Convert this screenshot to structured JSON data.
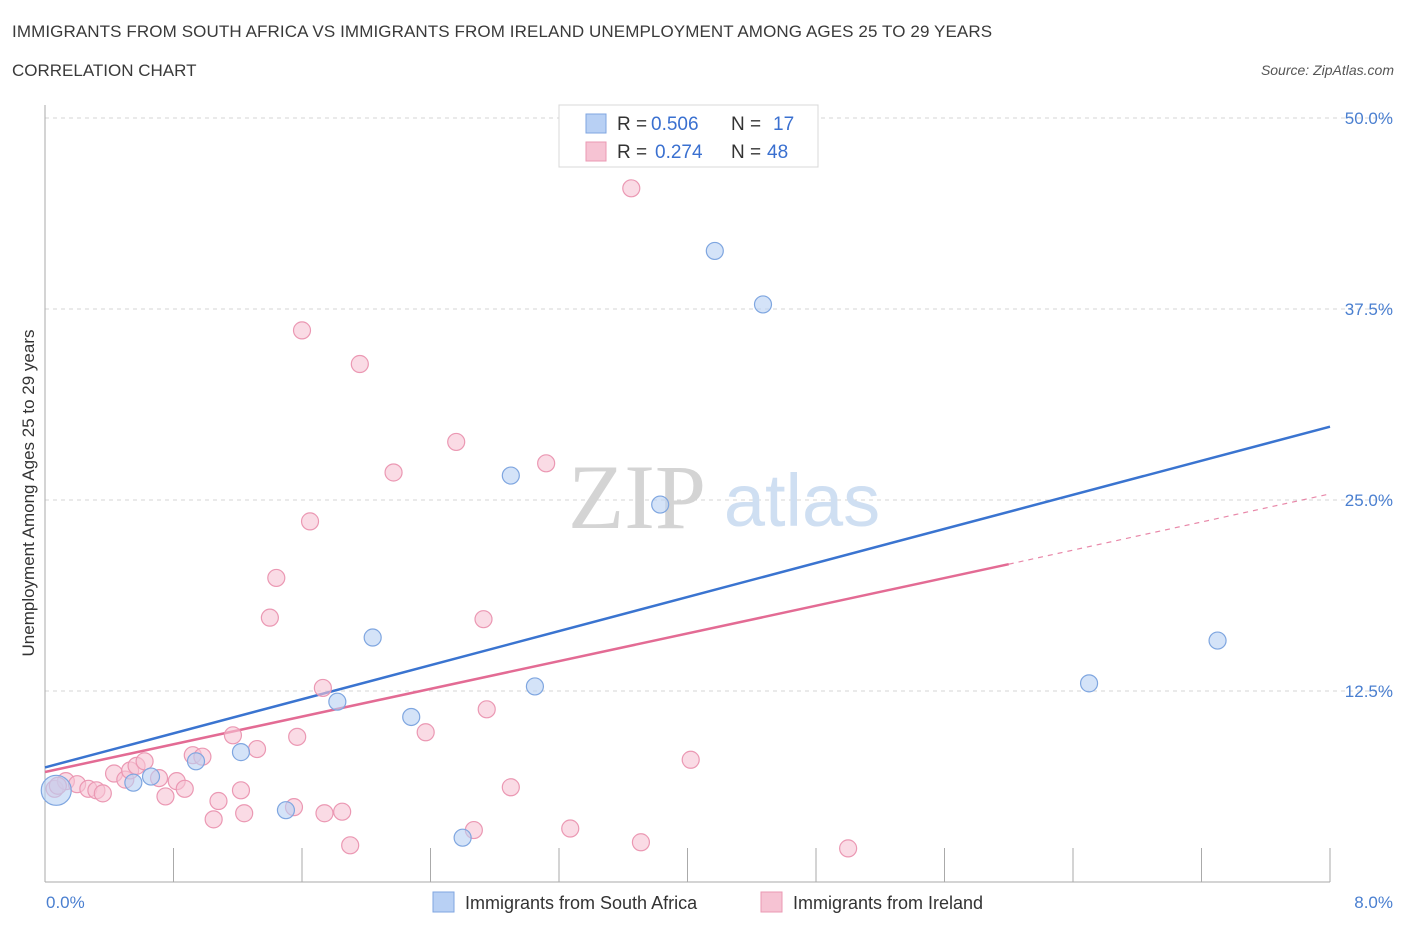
{
  "title": "IMMIGRANTS FROM SOUTH AFRICA VS IMMIGRANTS FROM IRELAND UNEMPLOYMENT AMONG AGES 25 TO 29 YEARS",
  "subtitle": "CORRELATION CHART",
  "source": "Source: ZipAtlas.com",
  "watermark": {
    "zip": "ZIP",
    "atlas": "atlas"
  },
  "legend": {
    "r_label": "R =",
    "n_label": "N =",
    "rows": [
      {
        "r": "0.506",
        "n": "17"
      },
      {
        "r": "0.274",
        "n": "48"
      }
    ]
  },
  "colors": {
    "south_africa_fill": "#b8d0f4",
    "south_africa_stroke": "#7fa6e0",
    "south_africa_line": "#3a74d0",
    "ireland_fill": "#f6c3d3",
    "ireland_stroke": "#eb98b3",
    "ireland_line": "#e36b94",
    "grid": "#d6d6d6",
    "tick_label": "#4a7fd0"
  },
  "chart_data": {
    "type": "scatter",
    "xlabel": "",
    "ylabel": "Unemployment Among Ages 25 to 29 years",
    "xlim": [
      0,
      8
    ],
    "ylim": [
      0,
      50
    ],
    "x_tick_labels": [
      {
        "value": 0,
        "label": "0.0%"
      },
      {
        "value": 8,
        "label": "8.0%"
      }
    ],
    "y_tick_labels": [
      {
        "value": 12.5,
        "label": "12.5%"
      },
      {
        "value": 25,
        "label": "25.0%"
      },
      {
        "value": 37.5,
        "label": "37.5%"
      },
      {
        "value": 50,
        "label": "50.0%"
      }
    ],
    "grid": true,
    "legend_position": "top-center",
    "series": [
      {
        "name": "Immigrants from South Africa",
        "r": 0.506,
        "n": 17,
        "trend": {
          "x0": 0,
          "y0": 7.5,
          "x1": 8,
          "y1": 29.8
        },
        "points": [
          [
            0.07,
            6.0
          ],
          [
            0.55,
            6.5
          ],
          [
            0.66,
            6.9
          ],
          [
            0.94,
            7.9
          ],
          [
            1.22,
            8.5
          ],
          [
            1.5,
            4.7
          ],
          [
            1.82,
            11.8
          ],
          [
            2.04,
            16.0
          ],
          [
            2.28,
            10.8
          ],
          [
            2.6,
            2.9
          ],
          [
            2.9,
            26.6
          ],
          [
            3.05,
            12.8
          ],
          [
            3.83,
            24.7
          ],
          [
            4.17,
            41.3
          ],
          [
            4.47,
            37.8
          ],
          [
            6.5,
            13.0
          ],
          [
            7.3,
            15.8
          ]
        ]
      },
      {
        "name": "Immigrants from Ireland",
        "r": 0.274,
        "n": 48,
        "trend": {
          "x0": 0,
          "y0": 7.2,
          "x1": 6.0,
          "y1": 20.8,
          "dash_x1": 8,
          "dash_y1": 25.4
        },
        "points": [
          [
            0.06,
            6.1
          ],
          [
            0.13,
            6.6
          ],
          [
            0.2,
            6.4
          ],
          [
            0.27,
            6.1
          ],
          [
            0.32,
            6.0
          ],
          [
            0.36,
            5.8
          ],
          [
            0.43,
            7.1
          ],
          [
            0.5,
            6.7
          ],
          [
            0.53,
            7.3
          ],
          [
            0.57,
            7.6
          ],
          [
            0.62,
            7.9
          ],
          [
            0.71,
            6.8
          ],
          [
            0.75,
            5.6
          ],
          [
            0.82,
            6.6
          ],
          [
            0.87,
            6.1
          ],
          [
            0.92,
            8.3
          ],
          [
            0.98,
            8.2
          ],
          [
            1.05,
            4.1
          ],
          [
            1.08,
            5.3
          ],
          [
            1.17,
            9.6
          ],
          [
            1.22,
            6.0
          ],
          [
            1.24,
            4.5
          ],
          [
            1.32,
            8.7
          ],
          [
            1.4,
            17.3
          ],
          [
            1.44,
            19.9
          ],
          [
            1.55,
            4.9
          ],
          [
            1.57,
            9.5
          ],
          [
            1.6,
            36.1
          ],
          [
            1.65,
            23.6
          ],
          [
            1.73,
            12.7
          ],
          [
            1.74,
            4.5
          ],
          [
            1.85,
            4.6
          ],
          [
            1.9,
            2.4
          ],
          [
            1.96,
            33.9
          ],
          [
            2.17,
            26.8
          ],
          [
            2.37,
            9.8
          ],
          [
            2.56,
            28.8
          ],
          [
            2.67,
            3.4
          ],
          [
            2.73,
            17.2
          ],
          [
            2.75,
            11.3
          ],
          [
            2.9,
            6.2
          ],
          [
            3.12,
            27.4
          ],
          [
            3.27,
            3.5
          ],
          [
            3.65,
            45.4
          ],
          [
            3.71,
            2.6
          ],
          [
            4.02,
            8.0
          ],
          [
            5.0,
            2.2
          ],
          [
            0.08,
            6.3
          ]
        ]
      }
    ]
  },
  "bottom_legend": [
    {
      "label": "Immigrants from South Africa"
    },
    {
      "label": "Immigrants from Ireland"
    }
  ]
}
